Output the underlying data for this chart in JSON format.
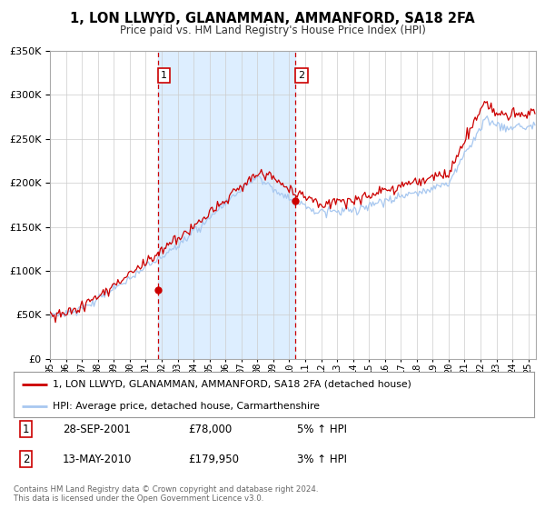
{
  "title": "1, LON LLWYD, GLANAMMAN, AMMANFORD, SA18 2FA",
  "subtitle": "Price paid vs. HM Land Registry's House Price Index (HPI)",
  "legend_line1": "1, LON LLWYD, GLANAMMAN, AMMANFORD, SA18 2FA (detached house)",
  "legend_line2": "HPI: Average price, detached house, Carmarthenshire",
  "sale1_date": "28-SEP-2001",
  "sale1_price": "£78,000",
  "sale1_hpi": "5% ↑ HPI",
  "sale1_year": 2001.75,
  "sale1_value": 78000,
  "sale2_date": "13-MAY-2010",
  "sale2_price": "£179,950",
  "sale2_hpi": "3% ↑ HPI",
  "sale2_year": 2010.37,
  "sale2_value": 179950,
  "copyright": "Contains HM Land Registry data © Crown copyright and database right 2024.\nThis data is licensed under the Open Government Licence v3.0.",
  "hpi_color": "#a8c8f0",
  "price_color": "#cc0000",
  "shade_color": "#ddeeff",
  "ylim": [
    0,
    350000
  ],
  "xlim_start": 1995.0,
  "xlim_end": 2025.5,
  "background_color": "#ffffff",
  "grid_color": "#cccccc"
}
